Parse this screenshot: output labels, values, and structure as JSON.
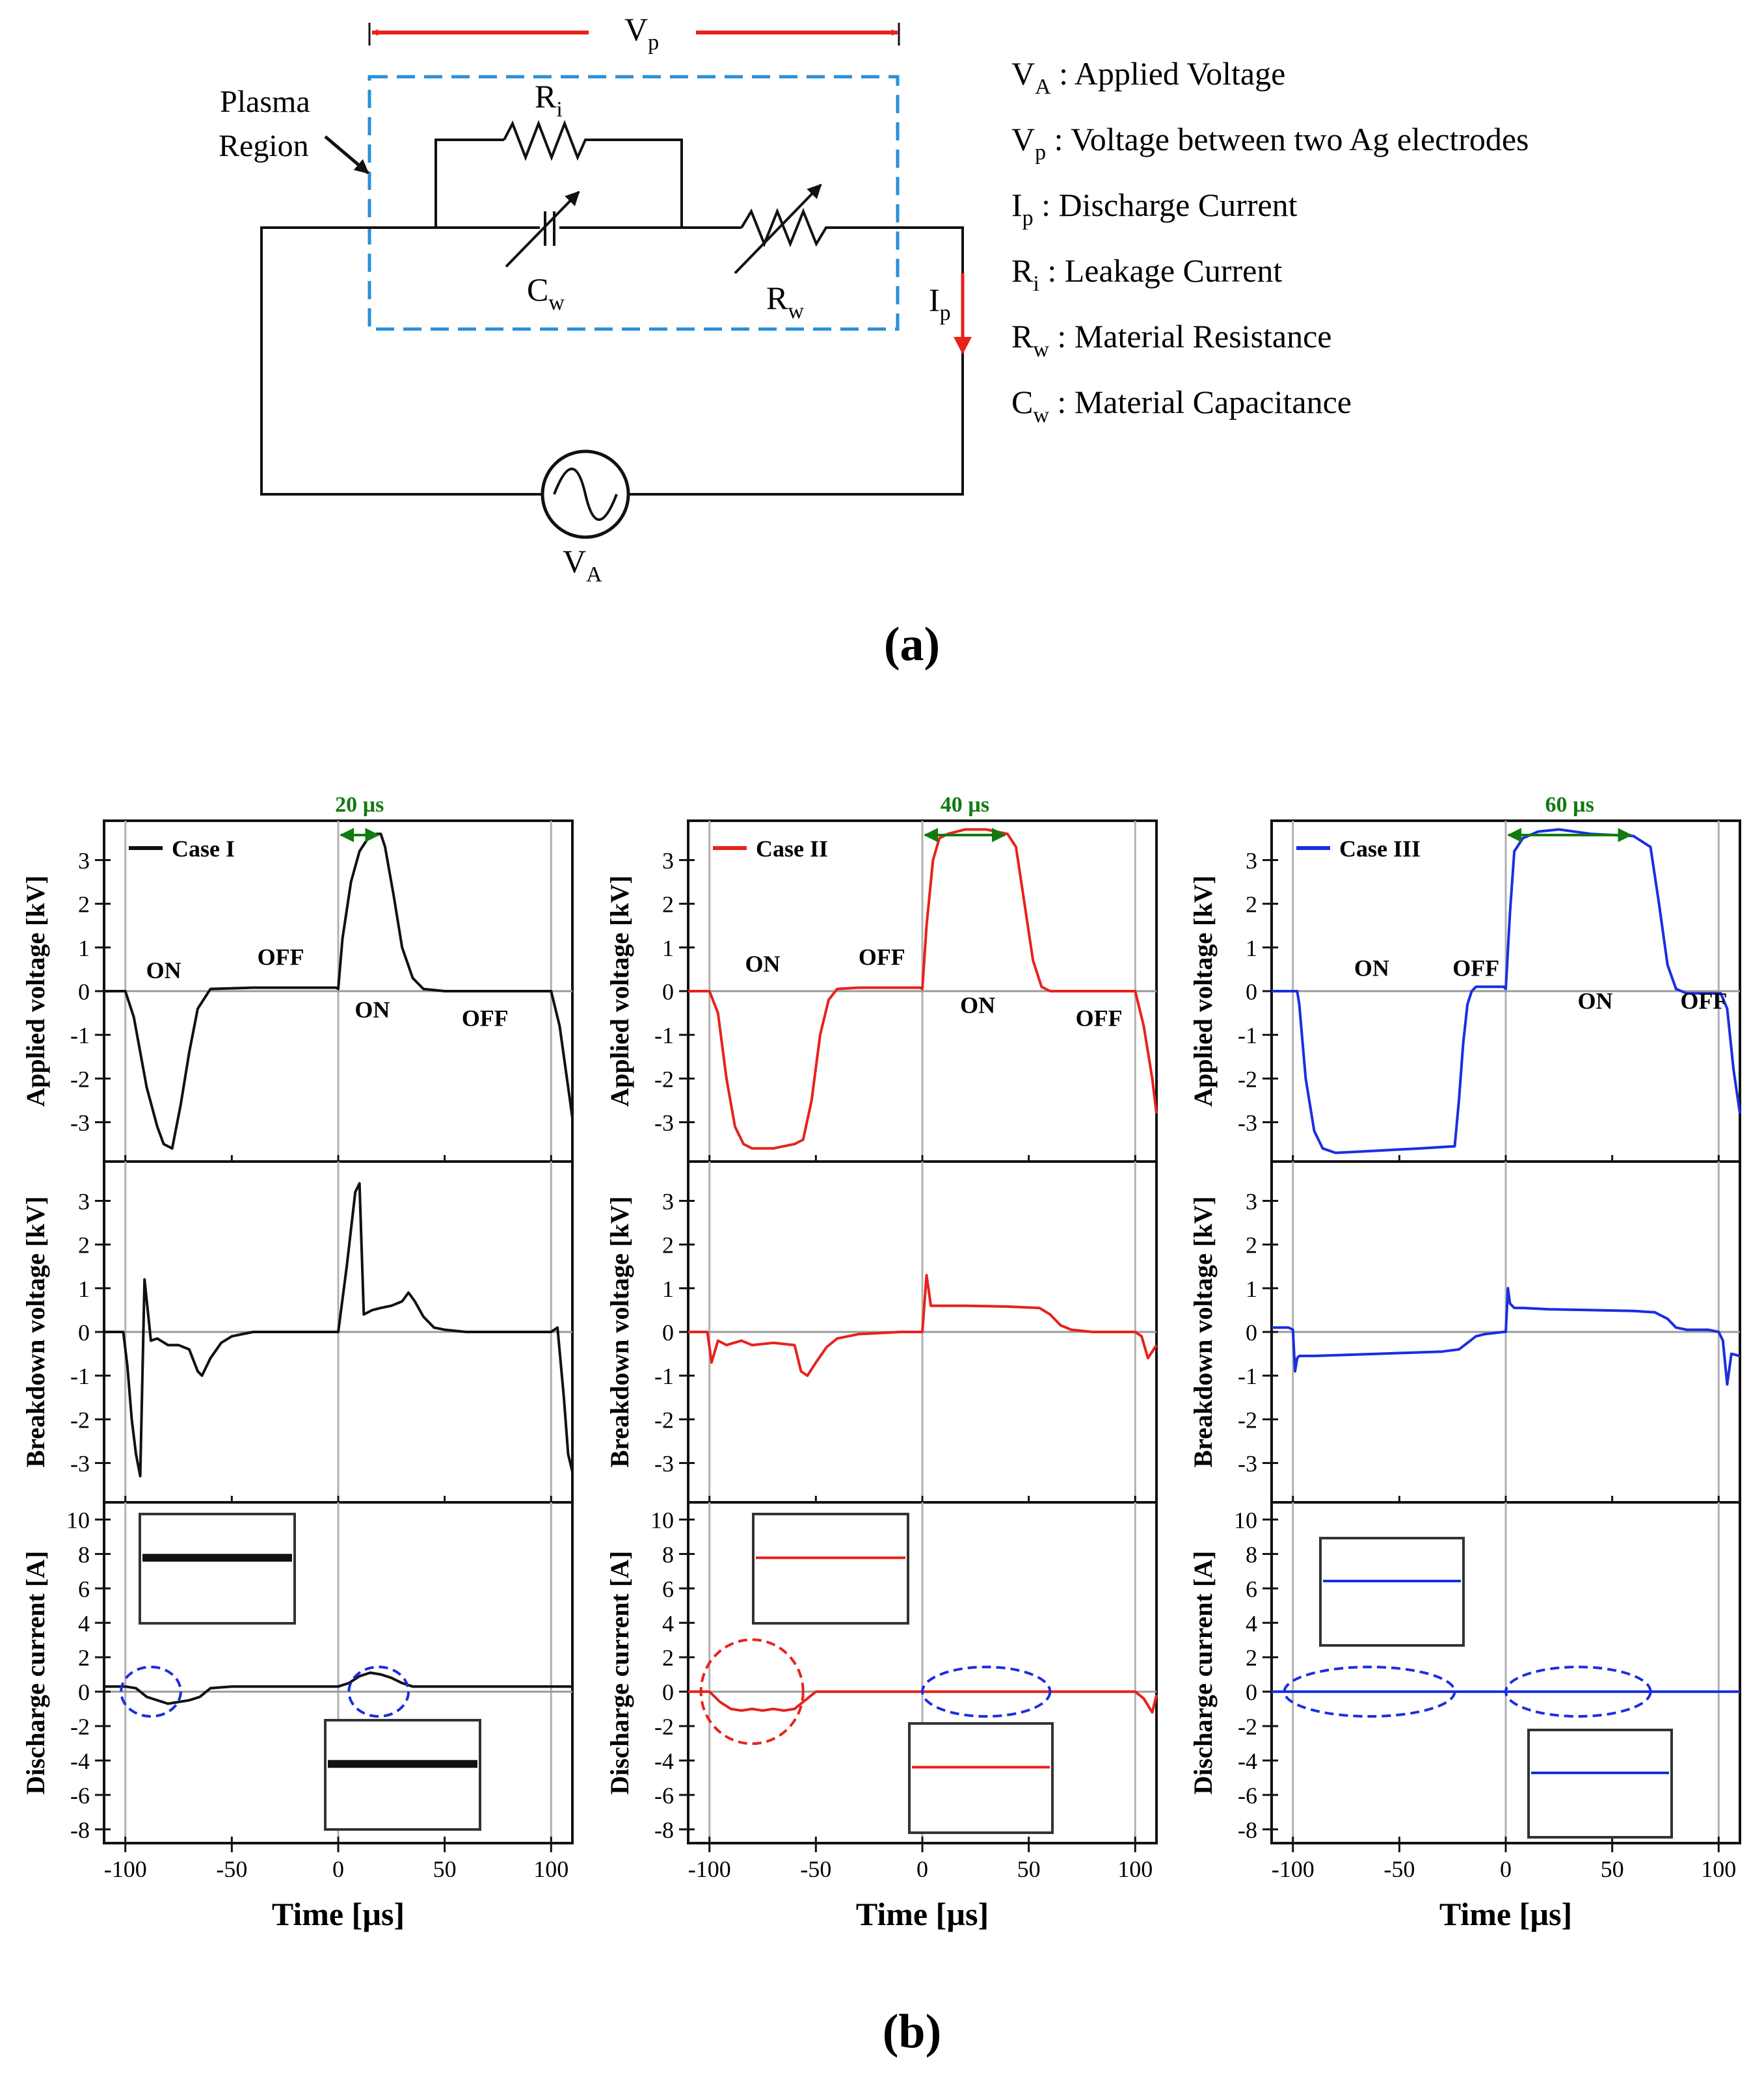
{
  "figure": {
    "panel_a_label": "(a)",
    "panel_b_label": "(b)"
  },
  "circuit": {
    "vp_label": "V",
    "vp_sub": "p",
    "plasma_label_line1": "Plasma",
    "plasma_label_line2": "Region",
    "ri_label": "R",
    "ri_sub": "i",
    "cw_label": "C",
    "cw_sub": "w",
    "rw_label": "R",
    "rw_sub": "w",
    "ip_label": "I",
    "ip_sub": "p",
    "va_label": "V",
    "va_sub": "A",
    "colors": {
      "vp_arrow": "#e8211d",
      "plasma_box": "#2a8fd8",
      "ip_arrow": "#e8211d"
    }
  },
  "legend_defs": [
    {
      "sym": "V",
      "sub": "A",
      "text": " : Applied Voltage"
    },
    {
      "sym": "V",
      "sub": "p",
      "text": " : Voltage between two Ag electrodes"
    },
    {
      "sym": "I",
      "sub": "p",
      "text": " : Discharge Current"
    },
    {
      "sym": "R",
      "sub": "i",
      "text": " : Leakage Current"
    },
    {
      "sym": "R",
      "sub": "w",
      "text": " : Material Resistance"
    },
    {
      "sym": "C",
      "sub": "w",
      "text": " : Material Capacitance"
    }
  ],
  "chart_data": [
    {
      "type": "line",
      "case": "Case I",
      "color": "#111111",
      "pulse_width_label": "20 µs",
      "on_width_us": 20,
      "xlabel": "Time [µs]",
      "xlim": [
        -110,
        110
      ],
      "xticks": [
        -100,
        -50,
        0,
        50,
        100
      ],
      "panels": [
        {
          "ylabel": "Applied voltage [kV]",
          "ylim": [
            -3.9,
            3.9
          ],
          "yticks": [
            3,
            2,
            1,
            0,
            -1,
            -2,
            -3
          ],
          "annotations": [
            {
              "text": "ON",
              "x": -82,
              "y": 0.3
            },
            {
              "text": "OFF",
              "x": -27,
              "y": 0.6
            },
            {
              "text": "ON",
              "x": 16,
              "y": -0.6
            },
            {
              "text": "OFF",
              "x": 69,
              "y": -0.8
            }
          ],
          "series": {
            "x": [
              -110,
              -100,
              -96,
              -90,
              -85,
              -82,
              -78,
              -74,
              -70,
              -66,
              -60,
              -40,
              -20,
              -5,
              -1,
              0,
              2,
              6,
              10,
              14,
              18,
              20,
              22,
              26,
              30,
              35,
              40,
              50,
              70,
              100,
              104,
              108,
              110
            ],
            "y": [
              0,
              0,
              -0.6,
              -2.2,
              -3.1,
              -3.5,
              -3.6,
              -2.6,
              -1.4,
              -0.4,
              0.05,
              0.08,
              0.08,
              0.08,
              0.08,
              0.05,
              1.2,
              2.5,
              3.2,
              3.5,
              3.6,
              3.6,
              3.3,
              2.2,
              1.0,
              0.3,
              0.05,
              0,
              0,
              0,
              -0.8,
              -2.2,
              -2.9
            ]
          }
        },
        {
          "ylabel": "Breakdown voltage [kV]",
          "ylim": [
            -3.9,
            3.9
          ],
          "yticks": [
            3,
            2,
            1,
            0,
            -1,
            -2,
            -3
          ],
          "series": {
            "x": [
              -110,
              -101,
              -99,
              -97,
              -95,
              -93,
              -91,
              -88,
              -85,
              -80,
              -75,
              -70,
              -66,
              -64,
              -60,
              -55,
              -50,
              -40,
              -20,
              -1,
              0,
              4,
              8,
              10,
              12,
              16,
              20,
              25,
              30,
              33,
              36,
              40,
              45,
              50,
              60,
              80,
              100,
              103,
              106,
              108,
              110
            ],
            "y": [
              0,
              0,
              -0.8,
              -2.0,
              -2.8,
              -3.3,
              1.2,
              -0.2,
              -0.15,
              -0.3,
              -0.3,
              -0.4,
              -0.9,
              -1.0,
              -0.6,
              -0.25,
              -0.1,
              0,
              0,
              0,
              0,
              1.5,
              3.2,
              3.4,
              0.4,
              0.5,
              0.55,
              0.6,
              0.7,
              0.9,
              0.7,
              0.35,
              0.1,
              0.05,
              0,
              0,
              0,
              0.1,
              -1.5,
              -2.8,
              -3.2
            ]
          }
        },
        {
          "ylabel": "Discharge current [A]",
          "ylim": [
            -8.8,
            11
          ],
          "yticks": [
            10,
            8,
            6,
            4,
            2,
            0,
            -2,
            -4,
            -6,
            -8
          ],
          "series": {
            "x": [
              -110,
              -100,
              -95,
              -90,
              -85,
              -80,
              -75,
              -70,
              -65,
              -60,
              -50,
              0,
              5,
              10,
              15,
              20,
              25,
              30,
              35,
              100,
              110
            ],
            "y": [
              0.3,
              0.3,
              0.2,
              -0.3,
              -0.5,
              -0.7,
              -0.6,
              -0.5,
              -0.3,
              0.2,
              0.3,
              0.3,
              0.5,
              0.9,
              1.1,
              1.0,
              0.8,
              0.5,
              0.3,
              0.3,
              0.3
            ]
          }
        }
      ]
    },
    {
      "type": "line",
      "case": "Case II",
      "color": "#e8211d",
      "pulse_width_label": "40 µs",
      "on_width_us": 40,
      "xlabel": "Time [µs]",
      "xlim": [
        -110,
        110
      ],
      "xticks": [
        -100,
        -50,
        0,
        50,
        100
      ],
      "panels": [
        {
          "ylabel": "Applied voltage [kV]",
          "ylim": [
            -3.9,
            3.9
          ],
          "yticks": [
            3,
            2,
            1,
            0,
            -1,
            -2,
            -3
          ],
          "annotations": [
            {
              "text": "ON",
              "x": -75,
              "y": 0.45
            },
            {
              "text": "OFF",
              "x": -19,
              "y": 0.6
            },
            {
              "text": "ON",
              "x": 26,
              "y": -0.5
            },
            {
              "text": "OFF",
              "x": 83,
              "y": -0.8
            }
          ],
          "series": {
            "x": [
              -110,
              -100,
              -96,
              -92,
              -88,
              -84,
              -80,
              -70,
              -60,
              -56,
              -52,
              -48,
              -44,
              -40,
              -30,
              -10,
              -1,
              0,
              2,
              5,
              8,
              12,
              20,
              30,
              40,
              44,
              48,
              52,
              56,
              60,
              70,
              100,
              104,
              108,
              110
            ],
            "y": [
              0,
              0,
              -0.5,
              -2.0,
              -3.1,
              -3.5,
              -3.6,
              -3.6,
              -3.5,
              -3.4,
              -2.5,
              -1.0,
              -0.2,
              0.05,
              0.08,
              0.08,
              0.08,
              0.05,
              1.5,
              3.0,
              3.5,
              3.6,
              3.7,
              3.7,
              3.6,
              3.3,
              2.0,
              0.7,
              0.1,
              0,
              0,
              0,
              -0.8,
              -2.0,
              -2.8
            ]
          }
        },
        {
          "ylabel": "Breakdown voltage [kV]",
          "ylim": [
            -3.9,
            3.9
          ],
          "yticks": [
            3,
            2,
            1,
            0,
            -1,
            -2,
            -3
          ],
          "series": {
            "x": [
              -110,
              -101,
              -99,
              -96,
              -92,
              -85,
              -80,
              -70,
              -60,
              -57,
              -54,
              -50,
              -45,
              -40,
              -30,
              -10,
              -1,
              0,
              2,
              4,
              8,
              20,
              40,
              55,
              60,
              65,
              70,
              80,
              100,
              103,
              106,
              110
            ],
            "y": [
              0,
              0,
              -0.7,
              -0.2,
              -0.3,
              -0.2,
              -0.3,
              -0.25,
              -0.3,
              -0.9,
              -1.0,
              -0.7,
              -0.35,
              -0.15,
              -0.05,
              0,
              0,
              0,
              1.3,
              0.6,
              0.6,
              0.6,
              0.58,
              0.55,
              0.4,
              0.15,
              0.05,
              0,
              0,
              -0.1,
              -0.6,
              -0.3
            ]
          }
        },
        {
          "ylabel": "Discharge current [A]",
          "ylim": [
            -8.8,
            11
          ],
          "yticks": [
            10,
            8,
            6,
            4,
            2,
            0,
            -2,
            -4,
            -6,
            -8
          ],
          "series": {
            "x": [
              -110,
              -100,
              -95,
              -90,
              -85,
              -80,
              -75,
              -70,
              -65,
              -60,
              -55,
              -50,
              0,
              100,
              104,
              108,
              110
            ],
            "y": [
              0,
              0,
              -0.6,
              -1.0,
              -1.1,
              -1.0,
              -1.1,
              -1.0,
              -1.1,
              -1.0,
              -0.5,
              0,
              0,
              0,
              -0.4,
              -1.2,
              -0.2
            ]
          }
        }
      ]
    },
    {
      "type": "line",
      "case": "Case III",
      "color": "#1a2ee0",
      "pulse_width_label": "60 µs",
      "on_width_us": 60,
      "xlabel": "Time [µs]",
      "xlim": [
        -110,
        110
      ],
      "xticks": [
        -100,
        -50,
        0,
        50,
        100
      ],
      "panels": [
        {
          "ylabel": "Applied voltage [kV]",
          "ylim": [
            -3.9,
            3.9
          ],
          "yticks": [
            3,
            2,
            1,
            0,
            -1,
            -2,
            -3
          ],
          "annotations": [
            {
              "text": "ON",
              "x": -63,
              "y": 0.35
            },
            {
              "text": "OFF",
              "x": -14,
              "y": 0.35
            },
            {
              "text": "ON",
              "x": 42,
              "y": -0.4
            },
            {
              "text": "OFF",
              "x": 93,
              "y": -0.4
            }
          ],
          "series": {
            "x": [
              -110,
              -98,
              -97,
              -94,
              -90,
              -86,
              -80,
              -60,
              -40,
              -24,
              -22,
              -20,
              -18,
              -16,
              -14,
              -10,
              -1,
              0,
              2,
              4,
              8,
              15,
              25,
              40,
              60,
              68,
              72,
              76,
              80,
              85,
              95,
              101,
              104,
              107,
              110
            ],
            "y": [
              0,
              0,
              -0.3,
              -2.0,
              -3.2,
              -3.6,
              -3.7,
              -3.65,
              -3.6,
              -3.55,
              -2.5,
              -1.2,
              -0.3,
              0,
              0.1,
              0.1,
              0.1,
              0.05,
              1.8,
              3.2,
              3.5,
              3.65,
              3.7,
              3.6,
              3.55,
              3.3,
              2.0,
              0.6,
              0.05,
              -0.05,
              -0.05,
              -0.05,
              -0.4,
              -1.8,
              -2.8
            ]
          }
        },
        {
          "ylabel": "Breakdown voltage [kV]",
          "ylim": [
            -3.9,
            3.9
          ],
          "yticks": [
            3,
            2,
            1,
            0,
            -1,
            -2,
            -3
          ],
          "series": {
            "x": [
              -110,
              -102,
              -100,
              -99,
              -98,
              -97,
              -95,
              -90,
              -60,
              -30,
              -22,
              -18,
              -14,
              -10,
              -1,
              0,
              1,
              2,
              4,
              8,
              20,
              40,
              60,
              70,
              76,
              80,
              85,
              95,
              100,
              102,
              104,
              106,
              110
            ],
            "y": [
              0.1,
              0.1,
              0.05,
              -0.9,
              -0.6,
              -0.55,
              -0.55,
              -0.55,
              -0.5,
              -0.45,
              -0.4,
              -0.25,
              -0.1,
              -0.05,
              0,
              0,
              1.0,
              0.65,
              0.55,
              0.55,
              0.52,
              0.5,
              0.48,
              0.45,
              0.3,
              0.1,
              0.05,
              0.05,
              0,
              -0.2,
              -1.2,
              -0.5,
              -0.55
            ]
          }
        },
        {
          "ylabel": "Discharge current [A]",
          "ylim": [
            -8.8,
            11
          ],
          "yticks": [
            10,
            8,
            6,
            4,
            2,
            0,
            -2,
            -4,
            -6,
            -8
          ],
          "series": {
            "x": [
              -110,
              110
            ],
            "y": [
              0,
              0
            ]
          }
        }
      ]
    }
  ]
}
